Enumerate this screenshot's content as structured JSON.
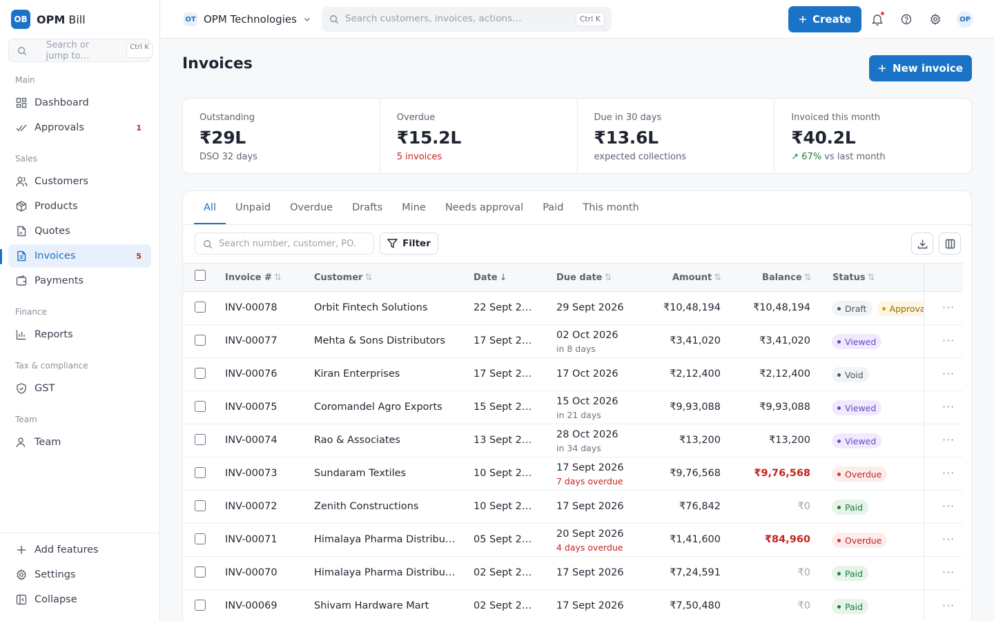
{
  "brand": {
    "logo": "OB",
    "name_bold": "OPM",
    "name_rest": " Bill"
  },
  "sidebar": {
    "search": {
      "placeholder": "Search or jump to…",
      "shortcut": "Ctrl K"
    },
    "sections": [
      {
        "label": "Main"
      },
      {
        "label": "Sales"
      },
      {
        "label": "Finance"
      },
      {
        "label": "Tax & compliance"
      },
      {
        "label": "Team"
      }
    ],
    "items": [
      {
        "label": "Dashboard",
        "icon": "grid-icon"
      },
      {
        "label": "Approvals",
        "icon": "check-icon",
        "count": "1"
      },
      {
        "label": "Customers",
        "icon": "users-icon"
      },
      {
        "label": "Products",
        "icon": "box-icon"
      },
      {
        "label": "Quotes",
        "icon": "quote-icon"
      },
      {
        "label": "Invoices",
        "icon": "file-icon",
        "count": "5",
        "active": true
      },
      {
        "label": "Payments",
        "icon": "wallet-icon"
      },
      {
        "label": "Reports",
        "icon": "bar-chart-icon"
      },
      {
        "label": "GST",
        "icon": "shield-icon"
      },
      {
        "label": "Team",
        "icon": "user-icon"
      }
    ],
    "footer": [
      {
        "label": "Add features",
        "icon": "plus-icon"
      },
      {
        "label": "Settings",
        "icon": "gear-icon"
      },
      {
        "label": "Collapse",
        "icon": "collapse-icon"
      }
    ]
  },
  "topbar": {
    "org_badge": "OT",
    "org_name": "OPM Technologies",
    "search_placeholder": "Search customers, invoices, actions…",
    "search_shortcut": "Ctrl K",
    "create_label": "Create",
    "avatar": "OP"
  },
  "page": {
    "title": "Invoices",
    "new_label": "New invoice"
  },
  "kpis": [
    {
      "label": "Outstanding",
      "value": "₹29L",
      "sub": "DSO 32 days"
    },
    {
      "label": "Overdue",
      "value": "₹15.2L",
      "sub": "5 invoices"
    },
    {
      "label": "Due in 30 days",
      "value": "₹13.6L",
      "sub": "expected collections"
    },
    {
      "label": "Invoiced this month",
      "value": "₹40.2L",
      "sub_up": "↗ 67%",
      "sub": " vs last month"
    }
  ],
  "tabs": [
    "All",
    "Unpaid",
    "Overdue",
    "Drafts",
    "Mine",
    "Needs approval",
    "Paid",
    "This month"
  ],
  "toolbar": {
    "search_placeholder": "Search number, customer, PO.",
    "filter_label": "Filter"
  },
  "columns": {
    "number": "Invoice #",
    "customer": "Customer",
    "date": "Date",
    "due": "Due date",
    "amount": "Amount",
    "balance": "Balance",
    "status": "Status",
    "sort_icon": "⇅",
    "sort_down": "↓"
  },
  "rows": [
    {
      "number": "INV-00078",
      "customer": "Orbit Fintech Solutions",
      "date": "22 Sept 2…",
      "due": "29 Sept 2026",
      "due_sub": "",
      "amount": "₹10,48,194",
      "balance": "₹10,48,194",
      "statuses": [
        "Draft",
        "Approval"
      ]
    },
    {
      "number": "INV-00077",
      "customer": "Mehta & Sons Distributors",
      "date": "17 Sept 2…",
      "due": "02 Oct 2026",
      "due_sub": "in 8 days",
      "amount": "₹3,41,020",
      "balance": "₹3,41,020",
      "statuses": [
        "Viewed"
      ]
    },
    {
      "number": "INV-00076",
      "customer": "Kiran Enterprises",
      "date": "17 Sept 2…",
      "due": "17 Oct 2026",
      "due_sub": "",
      "amount": "₹2,12,400",
      "balance": "₹2,12,400",
      "statuses": [
        "Void"
      ]
    },
    {
      "number": "INV-00075",
      "customer": "Coromandel Agro Exports",
      "date": "15 Sept 2…",
      "due": "15 Oct 2026",
      "due_sub": "in 21 days",
      "amount": "₹9,93,088",
      "balance": "₹9,93,088",
      "statuses": [
        "Viewed"
      ]
    },
    {
      "number": "INV-00074",
      "customer": "Rao & Associates",
      "date": "13 Sept 2…",
      "due": "28 Oct 2026",
      "due_sub": "in 34 days",
      "amount": "₹13,200",
      "balance": "₹13,200",
      "statuses": [
        "Viewed"
      ]
    },
    {
      "number": "INV-00073",
      "customer": "Sundaram Textiles",
      "date": "10 Sept 2…",
      "due": "17 Sept 2026",
      "due_sub": "7 days overdue",
      "amount": "₹9,76,568",
      "balance": "₹9,76,568",
      "statuses": [
        "Overdue"
      ]
    },
    {
      "number": "INV-00072",
      "customer": "Zenith Constructions",
      "date": "10 Sept 2…",
      "due": "17 Sept 2026",
      "due_sub": "",
      "amount": "₹76,842",
      "balance": "₹0",
      "statuses": [
        "Paid"
      ]
    },
    {
      "number": "INV-00071",
      "customer": "Himalaya Pharma Distribu…",
      "date": "05 Sept 2…",
      "due": "20 Sept 2026",
      "due_sub": "4 days overdue",
      "amount": "₹1,41,600",
      "balance": "₹84,960",
      "statuses": [
        "Overdue"
      ]
    },
    {
      "number": "INV-00070",
      "customer": "Himalaya Pharma Distribu…",
      "date": "02 Sept 2…",
      "due": "17 Sept 2026",
      "due_sub": "",
      "amount": "₹7,24,591",
      "balance": "₹0",
      "statuses": [
        "Paid"
      ]
    },
    {
      "number": "INV-00069",
      "customer": "Shivam Hardware Mart",
      "date": "02 Sept 2…",
      "due": "17 Sept 2026",
      "due_sub": "",
      "amount": "₹7,50,480",
      "balance": "₹0",
      "statuses": [
        "Paid"
      ]
    }
  ],
  "row_menu": "···",
  "colors": {
    "accent": "#1a73c7",
    "danger": "#c5221f",
    "success": "#188038",
    "viewed": "#6a46c7"
  }
}
